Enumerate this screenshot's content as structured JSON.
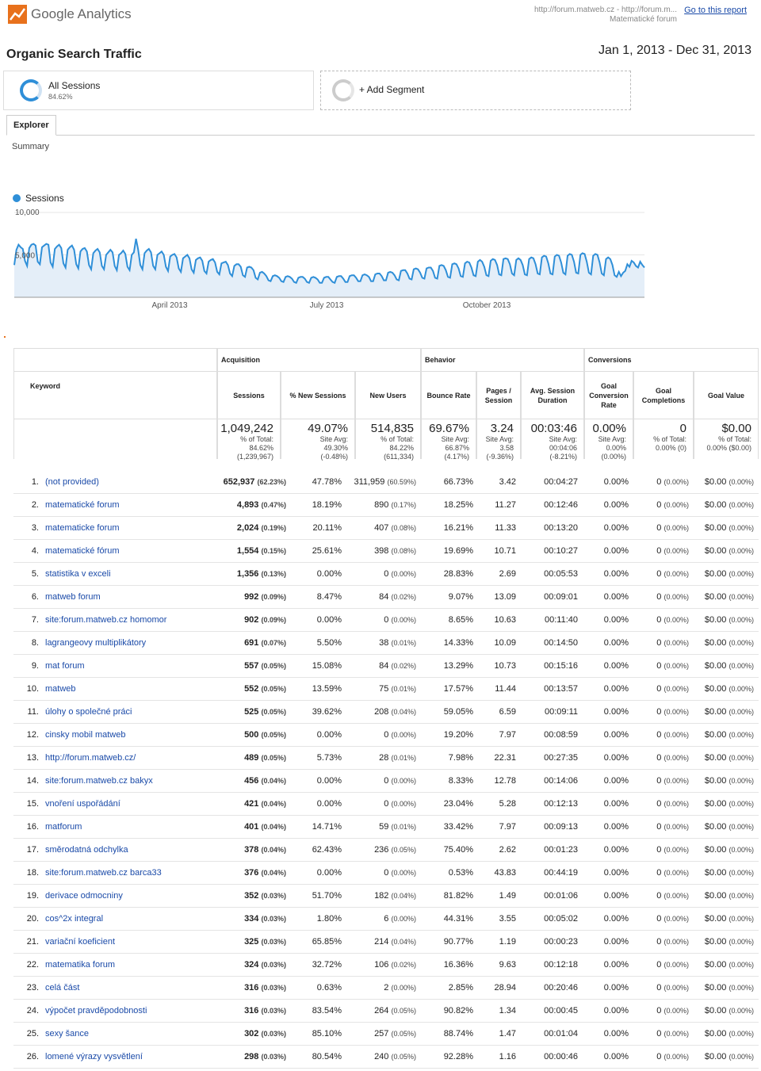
{
  "header": {
    "logo_text": "Google Analytics",
    "property_url": "http://forum.matweb.cz - http://forum.m...",
    "property_name": "Matematické forum",
    "goto_report": "Go to this report"
  },
  "report": {
    "title": "Organic Search Traffic",
    "date_range": "Jan 1, 2013 - Dec 31, 2013"
  },
  "segments": {
    "all_sessions": {
      "label": "All Sessions",
      "percent": "84.62%"
    },
    "add_segment": "+ Add Segment"
  },
  "tabs": {
    "explorer": "Explorer",
    "summary": "Summary"
  },
  "chart_data": {
    "type": "line",
    "series": [
      {
        "name": "Sessions"
      }
    ],
    "y_ticks": [
      "10,000",
      "5,000"
    ],
    "x_ticks": [
      "April 2013",
      "July 2013",
      "October 2013"
    ],
    "ylim": [
      0,
      10000
    ],
    "color": "#2f8fd8",
    "values": [
      3800,
      5600,
      6200,
      5900,
      5700,
      4300,
      3700,
      5800,
      6200,
      6300,
      6100,
      4200,
      3900,
      5900,
      6100,
      6300,
      6200,
      4100,
      3600,
      5700,
      6000,
      6200,
      5800,
      4000,
      3500,
      5600,
      5900,
      6100,
      5600,
      3900,
      3400,
      5400,
      5700,
      5800,
      5400,
      3800,
      3300,
      5200,
      5500,
      5700,
      5300,
      3700,
      3300,
      5000,
      5300,
      5600,
      5300,
      3700,
      3200,
      5000,
      5200,
      5500,
      5100,
      3600,
      3200,
      5000,
      5300,
      6900,
      5600,
      3800,
      3300,
      5200,
      5500,
      5700,
      5300,
      3700,
      3300,
      5000,
      5200,
      5400,
      5000,
      3600,
      3100,
      4800,
      5000,
      5100,
      4700,
      3400,
      3000,
      4600,
      4800,
      5000,
      4600,
      3300,
      2900,
      4400,
      4600,
      4700,
      4300,
      3100,
      2800,
      4200,
      4400,
      4500,
      4100,
      3000,
      2700,
      4000,
      4100,
      4200,
      3800,
      2800,
      2500,
      3700,
      3900,
      3900,
      3600,
      2600,
      2400,
      3500,
      3600,
      3500,
      3200,
      2300,
      2100,
      2900,
      3000,
      2800,
      2500,
      2000,
      1900,
      2500,
      2600,
      2500,
      2300,
      1900,
      1800,
      2400,
      2500,
      2400,
      2200,
      1800,
      1700,
      2300,
      2400,
      2400,
      2200,
      1800,
      1700,
      2300,
      2400,
      2300,
      2100,
      1700,
      1700,
      2300,
      2400,
      2400,
      2100,
      1800,
      1700,
      2400,
      2500,
      2500,
      2200,
      1800,
      1800,
      2500,
      2600,
      2600,
      2300,
      1900,
      1900,
      2600,
      2700,
      2600,
      2400,
      1900,
      1900,
      2700,
      2800,
      2800,
      2500,
      2000,
      2000,
      2900,
      3000,
      2900,
      2600,
      2100,
      2000,
      3100,
      3200,
      3200,
      2800,
      2200,
      2100,
      3300,
      3400,
      3300,
      2900,
      2300,
      2200,
      3400,
      3500,
      3500,
      3100,
      2300,
      2200,
      3700,
      3800,
      3700,
      3200,
      2400,
      2300,
      3900,
      4000,
      3900,
      3400,
      2500,
      2400,
      4000,
      4200,
      4100,
      3500,
      2600,
      2500,
      4200,
      4400,
      4200,
      3600,
      2600,
      2500,
      4300,
      4500,
      4400,
      3800,
      2700,
      2600,
      4500,
      4600,
      4500,
      3900,
      2800,
      2600,
      4400,
      4600,
      4400,
      3800,
      2700,
      2600,
      4500,
      4700,
      4600,
      3900,
      2800,
      2700,
      4700,
      4900,
      4800,
      4000,
      2800,
      2700,
      4800,
      5000,
      4900,
      4100,
      2900,
      2700,
      4900,
      5100,
      5000,
      4200,
      2900,
      2800,
      5000,
      5200,
      5100,
      4200,
      2900,
      2700,
      4900,
      5100,
      5000,
      4100,
      2800,
      2600,
      4500,
      4700,
      4500,
      3800,
      2600,
      2400,
      3000,
      2500,
      2900,
      3100,
      3900,
      3600,
      4300,
      4100,
      3700,
      3500,
      4200,
      3800,
      3500
    ]
  },
  "table": {
    "groups": {
      "acquisition": "Acquisition",
      "behavior": "Behavior",
      "conversions": "Conversions"
    },
    "columns": {
      "keyword": "Keyword",
      "sessions": "Sessions",
      "pct_new": "% New Sessions",
      "new_users": "New Users",
      "bounce": "Bounce Rate",
      "pps": "Pages / Session",
      "duration": "Avg. Session Duration",
      "gcr": "Goal Conversion Rate",
      "gc": "Goal Completions",
      "gv": "Goal Value"
    },
    "totals": {
      "sessions": {
        "big": "1,049,242",
        "l1": "% of Total: 84.62%",
        "l2": "(1,239,967)"
      },
      "pct_new": {
        "big": "49.07%",
        "l1": "Site Avg:",
        "l2": "49.30%",
        "l3": "(-0.48%)"
      },
      "new_users": {
        "big": "514,835",
        "l1": "% of Total: 84.22%",
        "l2": "(611,334)"
      },
      "bounce": {
        "big": "69.67%",
        "l1": "Site Avg:",
        "l2": "66.87%",
        "l3": "(4.17%)"
      },
      "pps": {
        "big": "3.24",
        "l1": "Site Avg:",
        "l2": "3.58",
        "l3": "(-9.36%)"
      },
      "duration": {
        "big": "00:03:46",
        "l1": "Site Avg:",
        "l2": "00:04:06",
        "l3": "(-8.21%)"
      },
      "gcr": {
        "big": "0.00%",
        "l1": "Site Avg:",
        "l2": "0.00%",
        "l3": "(0.00%)"
      },
      "gc": {
        "big": "0",
        "l1": "% of Total:",
        "l2": "0.00% (0)"
      },
      "gv": {
        "big": "$0.00",
        "l1": "% of Total:",
        "l2": "0.00% ($0.00)"
      }
    },
    "rows": [
      {
        "n": "1.",
        "kw": "(not provided)",
        "s": "652,937",
        "sp": "(62.23%)",
        "pn": "47.78%",
        "nu": "311,959",
        "nup": "(60.59%)",
        "br": "66.73%",
        "pps": "3.42",
        "d": "00:04:27",
        "gcr": "0.00%",
        "gc": "0",
        "gcp": "(0.00%)",
        "gv": "$0.00",
        "gvp": "(0.00%)"
      },
      {
        "n": "2.",
        "kw": "matematické forum",
        "s": "4,893",
        "sp": "(0.47%)",
        "pn": "18.19%",
        "nu": "890",
        "nup": "(0.17%)",
        "br": "18.25%",
        "pps": "11.27",
        "d": "00:12:46",
        "gcr": "0.00%",
        "gc": "0",
        "gcp": "(0.00%)",
        "gv": "$0.00",
        "gvp": "(0.00%)"
      },
      {
        "n": "3.",
        "kw": "matematicke forum",
        "s": "2,024",
        "sp": "(0.19%)",
        "pn": "20.11%",
        "nu": "407",
        "nup": "(0.08%)",
        "br": "16.21%",
        "pps": "11.33",
        "d": "00:13:20",
        "gcr": "0.00%",
        "gc": "0",
        "gcp": "(0.00%)",
        "gv": "$0.00",
        "gvp": "(0.00%)"
      },
      {
        "n": "4.",
        "kw": "matematické fórum",
        "s": "1,554",
        "sp": "(0.15%)",
        "pn": "25.61%",
        "nu": "398",
        "nup": "(0.08%)",
        "br": "19.69%",
        "pps": "10.71",
        "d": "00:10:27",
        "gcr": "0.00%",
        "gc": "0",
        "gcp": "(0.00%)",
        "gv": "$0.00",
        "gvp": "(0.00%)"
      },
      {
        "n": "5.",
        "kw": "statistika v exceli",
        "s": "1,356",
        "sp": "(0.13%)",
        "pn": "0.00%",
        "nu": "0",
        "nup": "(0.00%)",
        "br": "28.83%",
        "pps": "2.69",
        "d": "00:05:53",
        "gcr": "0.00%",
        "gc": "0",
        "gcp": "(0.00%)",
        "gv": "$0.00",
        "gvp": "(0.00%)"
      },
      {
        "n": "6.",
        "kw": "matweb forum",
        "s": "992",
        "sp": "(0.09%)",
        "pn": "8.47%",
        "nu": "84",
        "nup": "(0.02%)",
        "br": "9.07%",
        "pps": "13.09",
        "d": "00:09:01",
        "gcr": "0.00%",
        "gc": "0",
        "gcp": "(0.00%)",
        "gv": "$0.00",
        "gvp": "(0.00%)"
      },
      {
        "n": "7.",
        "kw": "site:forum.matweb.cz homomor",
        "s": "902",
        "sp": "(0.09%)",
        "pn": "0.00%",
        "nu": "0",
        "nup": "(0.00%)",
        "br": "8.65%",
        "pps": "10.63",
        "d": "00:11:40",
        "gcr": "0.00%",
        "gc": "0",
        "gcp": "(0.00%)",
        "gv": "$0.00",
        "gvp": "(0.00%)"
      },
      {
        "n": "8.",
        "kw": "lagrangeovy multiplikátory",
        "s": "691",
        "sp": "(0.07%)",
        "pn": "5.50%",
        "nu": "38",
        "nup": "(0.01%)",
        "br": "14.33%",
        "pps": "10.09",
        "d": "00:14:50",
        "gcr": "0.00%",
        "gc": "0",
        "gcp": "(0.00%)",
        "gv": "$0.00",
        "gvp": "(0.00%)"
      },
      {
        "n": "9.",
        "kw": "mat forum",
        "s": "557",
        "sp": "(0.05%)",
        "pn": "15.08%",
        "nu": "84",
        "nup": "(0.02%)",
        "br": "13.29%",
        "pps": "10.73",
        "d": "00:15:16",
        "gcr": "0.00%",
        "gc": "0",
        "gcp": "(0.00%)",
        "gv": "$0.00",
        "gvp": "(0.00%)"
      },
      {
        "n": "10.",
        "kw": "matweb",
        "s": "552",
        "sp": "(0.05%)",
        "pn": "13.59%",
        "nu": "75",
        "nup": "(0.01%)",
        "br": "17.57%",
        "pps": "11.44",
        "d": "00:13:57",
        "gcr": "0.00%",
        "gc": "0",
        "gcp": "(0.00%)",
        "gv": "$0.00",
        "gvp": "(0.00%)"
      },
      {
        "n": "11.",
        "kw": "úlohy o společné práci",
        "s": "525",
        "sp": "(0.05%)",
        "pn": "39.62%",
        "nu": "208",
        "nup": "(0.04%)",
        "br": "59.05%",
        "pps": "6.59",
        "d": "00:09:11",
        "gcr": "0.00%",
        "gc": "0",
        "gcp": "(0.00%)",
        "gv": "$0.00",
        "gvp": "(0.00%)"
      },
      {
        "n": "12.",
        "kw": "cinsky mobil matweb",
        "s": "500",
        "sp": "(0.05%)",
        "pn": "0.00%",
        "nu": "0",
        "nup": "(0.00%)",
        "br": "19.20%",
        "pps": "7.97",
        "d": "00:08:59",
        "gcr": "0.00%",
        "gc": "0",
        "gcp": "(0.00%)",
        "gv": "$0.00",
        "gvp": "(0.00%)"
      },
      {
        "n": "13.",
        "kw": "http://forum.matweb.cz/",
        "s": "489",
        "sp": "(0.05%)",
        "pn": "5.73%",
        "nu": "28",
        "nup": "(0.01%)",
        "br": "7.98%",
        "pps": "22.31",
        "d": "00:27:35",
        "gcr": "0.00%",
        "gc": "0",
        "gcp": "(0.00%)",
        "gv": "$0.00",
        "gvp": "(0.00%)"
      },
      {
        "n": "14.",
        "kw": "site:forum.matweb.cz bakyx",
        "s": "456",
        "sp": "(0.04%)",
        "pn": "0.00%",
        "nu": "0",
        "nup": "(0.00%)",
        "br": "8.33%",
        "pps": "12.78",
        "d": "00:14:06",
        "gcr": "0.00%",
        "gc": "0",
        "gcp": "(0.00%)",
        "gv": "$0.00",
        "gvp": "(0.00%)"
      },
      {
        "n": "15.",
        "kw": "vnoření uspořádání",
        "s": "421",
        "sp": "(0.04%)",
        "pn": "0.00%",
        "nu": "0",
        "nup": "(0.00%)",
        "br": "23.04%",
        "pps": "5.28",
        "d": "00:12:13",
        "gcr": "0.00%",
        "gc": "0",
        "gcp": "(0.00%)",
        "gv": "$0.00",
        "gvp": "(0.00%)"
      },
      {
        "n": "16.",
        "kw": "matforum",
        "s": "401",
        "sp": "(0.04%)",
        "pn": "14.71%",
        "nu": "59",
        "nup": "(0.01%)",
        "br": "33.42%",
        "pps": "7.97",
        "d": "00:09:13",
        "gcr": "0.00%",
        "gc": "0",
        "gcp": "(0.00%)",
        "gv": "$0.00",
        "gvp": "(0.00%)"
      },
      {
        "n": "17.",
        "kw": "směrodatná odchylka",
        "s": "378",
        "sp": "(0.04%)",
        "pn": "62.43%",
        "nu": "236",
        "nup": "(0.05%)",
        "br": "75.40%",
        "pps": "2.62",
        "d": "00:01:23",
        "gcr": "0.00%",
        "gc": "0",
        "gcp": "(0.00%)",
        "gv": "$0.00",
        "gvp": "(0.00%)"
      },
      {
        "n": "18.",
        "kw": "site:forum.matweb.cz barca33",
        "s": "376",
        "sp": "(0.04%)",
        "pn": "0.00%",
        "nu": "0",
        "nup": "(0.00%)",
        "br": "0.53%",
        "pps": "43.83",
        "d": "00:44:19",
        "gcr": "0.00%",
        "gc": "0",
        "gcp": "(0.00%)",
        "gv": "$0.00",
        "gvp": "(0.00%)"
      },
      {
        "n": "19.",
        "kw": "derivace odmocniny",
        "s": "352",
        "sp": "(0.03%)",
        "pn": "51.70%",
        "nu": "182",
        "nup": "(0.04%)",
        "br": "81.82%",
        "pps": "1.49",
        "d": "00:01:06",
        "gcr": "0.00%",
        "gc": "0",
        "gcp": "(0.00%)",
        "gv": "$0.00",
        "gvp": "(0.00%)"
      },
      {
        "n": "20.",
        "kw": "cos^2x integral",
        "s": "334",
        "sp": "(0.03%)",
        "pn": "1.80%",
        "nu": "6",
        "nup": "(0.00%)",
        "br": "44.31%",
        "pps": "3.55",
        "d": "00:05:02",
        "gcr": "0.00%",
        "gc": "0",
        "gcp": "(0.00%)",
        "gv": "$0.00",
        "gvp": "(0.00%)"
      },
      {
        "n": "21.",
        "kw": "variační koeficient",
        "s": "325",
        "sp": "(0.03%)",
        "pn": "65.85%",
        "nu": "214",
        "nup": "(0.04%)",
        "br": "90.77%",
        "pps": "1.19",
        "d": "00:00:23",
        "gcr": "0.00%",
        "gc": "0",
        "gcp": "(0.00%)",
        "gv": "$0.00",
        "gvp": "(0.00%)"
      },
      {
        "n": "22.",
        "kw": "matematika forum",
        "s": "324",
        "sp": "(0.03%)",
        "pn": "32.72%",
        "nu": "106",
        "nup": "(0.02%)",
        "br": "16.36%",
        "pps": "9.63",
        "d": "00:12:18",
        "gcr": "0.00%",
        "gc": "0",
        "gcp": "(0.00%)",
        "gv": "$0.00",
        "gvp": "(0.00%)"
      },
      {
        "n": "23.",
        "kw": "celá část",
        "s": "316",
        "sp": "(0.03%)",
        "pn": "0.63%",
        "nu": "2",
        "nup": "(0.00%)",
        "br": "2.85%",
        "pps": "28.94",
        "d": "00:20:46",
        "gcr": "0.00%",
        "gc": "0",
        "gcp": "(0.00%)",
        "gv": "$0.00",
        "gvp": "(0.00%)"
      },
      {
        "n": "24.",
        "kw": "výpočet pravděpodobnosti",
        "s": "316",
        "sp": "(0.03%)",
        "pn": "83.54%",
        "nu": "264",
        "nup": "(0.05%)",
        "br": "90.82%",
        "pps": "1.34",
        "d": "00:00:45",
        "gcr": "0.00%",
        "gc": "0",
        "gcp": "(0.00%)",
        "gv": "$0.00",
        "gvp": "(0.00%)"
      },
      {
        "n": "25.",
        "kw": "sexy šance",
        "s": "302",
        "sp": "(0.03%)",
        "pn": "85.10%",
        "nu": "257",
        "nup": "(0.05%)",
        "br": "88.74%",
        "pps": "1.47",
        "d": "00:01:04",
        "gcr": "0.00%",
        "gc": "0",
        "gcp": "(0.00%)",
        "gv": "$0.00",
        "gvp": "(0.00%)"
      },
      {
        "n": "26.",
        "kw": "lomené výrazy vysvětlení",
        "s": "298",
        "sp": "(0.03%)",
        "pn": "80.54%",
        "nu": "240",
        "nup": "(0.05%)",
        "br": "92.28%",
        "pps": "1.16",
        "d": "00:00:46",
        "gcr": "0.00%",
        "gc": "0",
        "gcp": "(0.00%)",
        "gv": "$0.00",
        "gvp": "(0.00%)"
      }
    ]
  }
}
